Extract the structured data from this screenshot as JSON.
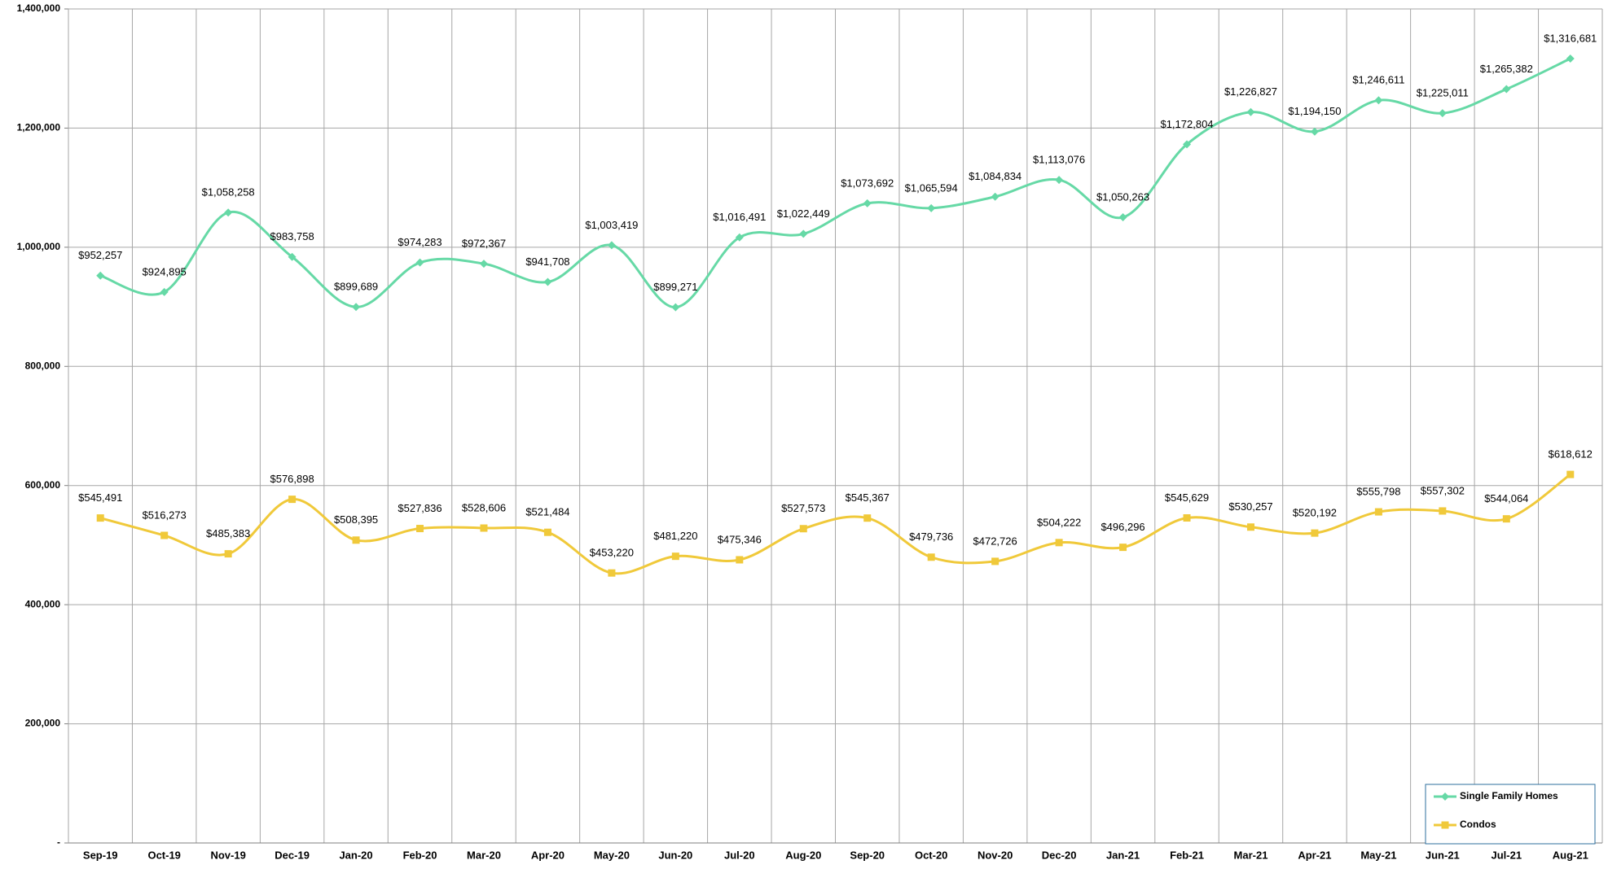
{
  "chart_data": {
    "type": "line",
    "categories": [
      "Sep-19",
      "Oct-19",
      "Nov-19",
      "Dec-19",
      "Jan-20",
      "Feb-20",
      "Mar-20",
      "Apr-20",
      "May-20",
      "Jun-20",
      "Jul-20",
      "Aug-20",
      "Sep-20",
      "Oct-20",
      "Nov-20",
      "Dec-20",
      "Jan-21",
      "Feb-21",
      "Mar-21",
      "Apr-21",
      "May-21",
      "Jun-21",
      "Jul-21",
      "Aug-21"
    ],
    "series": [
      {
        "name": "Single Family Homes",
        "color": "#66d9a6",
        "marker": "diamond",
        "values": [
          952257,
          924895,
          1058258,
          983758,
          899689,
          974283,
          972367,
          941708,
          1003419,
          899271,
          1016491,
          1022449,
          1073692,
          1065594,
          1084834,
          1113076,
          1050263,
          1172804,
          1226827,
          1194150,
          1246611,
          1225011,
          1265382,
          1316681
        ],
        "value_labels": [
          "$952,257",
          "$924,895",
          "$1,058,258",
          "$983,758",
          "$899,689",
          "$974,283",
          "$972,367",
          "$941,708",
          "$1,003,419",
          "$899,271",
          "$1,016,491",
          "$1,022,449",
          "$1,073,692",
          "$1,065,594",
          "$1,084,834",
          "$1,113,076",
          "$1,050,263",
          "$1,172,804",
          "$1,226,827",
          "$1,194,150",
          "$1,246,611",
          "$1,225,011",
          "$1,265,382",
          "$1,316,681"
        ]
      },
      {
        "name": "Condos",
        "color": "#f0c93a",
        "marker": "square",
        "values": [
          545491,
          516273,
          485383,
          576898,
          508395,
          527836,
          528606,
          521484,
          453220,
          481220,
          475346,
          527573,
          545367,
          479736,
          472726,
          504222,
          496296,
          545629,
          530257,
          520192,
          555798,
          557302,
          544064,
          618612
        ],
        "value_labels": [
          "$545,491",
          "$516,273",
          "$485,383",
          "$576,898",
          "$508,395",
          "$527,836",
          "$528,606",
          "$521,484",
          "$453,220",
          "$481,220",
          "$475,346",
          "$527,573",
          "$545,367",
          "$479,736",
          "$472,726",
          "$504,222",
          "$496,296",
          "$545,629",
          "$530,257",
          "$520,192",
          "$555,798",
          "$557,302",
          "$544,064",
          "$618,612"
        ]
      }
    ],
    "ylim": [
      0,
      1400000
    ],
    "yticks": [
      {
        "value": 0,
        "label": "-"
      },
      {
        "value": 200000,
        "label": "200,000"
      },
      {
        "value": 400000,
        "label": "400,000"
      },
      {
        "value": 600000,
        "label": "600,000"
      },
      {
        "value": 800000,
        "label": "800,000"
      },
      {
        "value": 1000000,
        "label": "1,000,000"
      },
      {
        "value": 1200000,
        "label": "1,200,000"
      },
      {
        "value": 1400000,
        "label": "1,400,000"
      }
    ],
    "grid": true,
    "smooth": true,
    "legend_position": "lower right"
  }
}
